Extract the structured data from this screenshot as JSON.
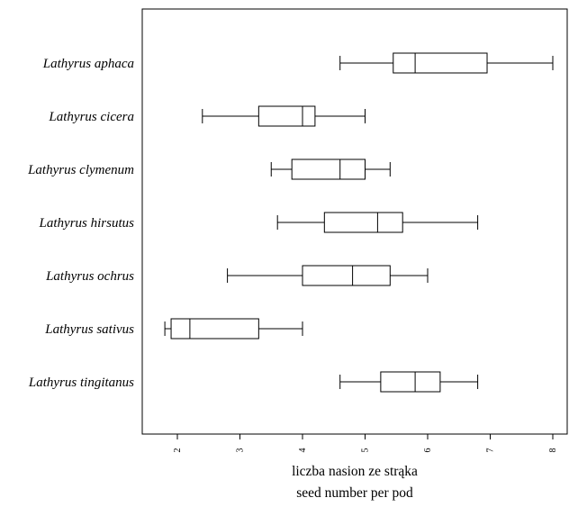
{
  "chart_data": {
    "type": "boxplot",
    "orientation": "horizontal",
    "categories": [
      "Lathyrus aphaca",
      "Lathyrus cicera",
      "Lathyrus clymenum",
      "Lathyrus hirsutus",
      "Lathyrus ochrus",
      "Lathyrus sativus",
      "Lathyrus tingitanus"
    ],
    "boxes": [
      {
        "min": 4.6,
        "q1": 5.45,
        "median": 5.8,
        "q3": 6.95,
        "max": 8.0
      },
      {
        "min": 2.4,
        "q1": 3.3,
        "median": 4.0,
        "q3": 4.2,
        "max": 5.0
      },
      {
        "min": 3.5,
        "q1": 3.83,
        "median": 4.6,
        "q3": 5.0,
        "max": 5.4
      },
      {
        "min": 3.6,
        "q1": 4.35,
        "median": 5.2,
        "q3": 5.6,
        "max": 6.8
      },
      {
        "min": 2.8,
        "q1": 4.0,
        "median": 4.8,
        "q3": 5.4,
        "max": 6.0
      },
      {
        "min": 1.8,
        "q1": 1.9,
        "median": 2.2,
        "q3": 3.3,
        "max": 4.0
      },
      {
        "min": 4.6,
        "q1": 5.25,
        "median": 5.8,
        "q3": 6.2,
        "max": 6.8
      }
    ],
    "xticks": [
      2,
      3,
      4,
      5,
      6,
      7,
      8
    ],
    "xlim": [
      1.6,
      8.3
    ],
    "xlabel": [
      "liczba nasion ze strąka",
      "seed number per pod"
    ],
    "ylabel": "",
    "title": "",
    "grid": false,
    "legend": false
  }
}
